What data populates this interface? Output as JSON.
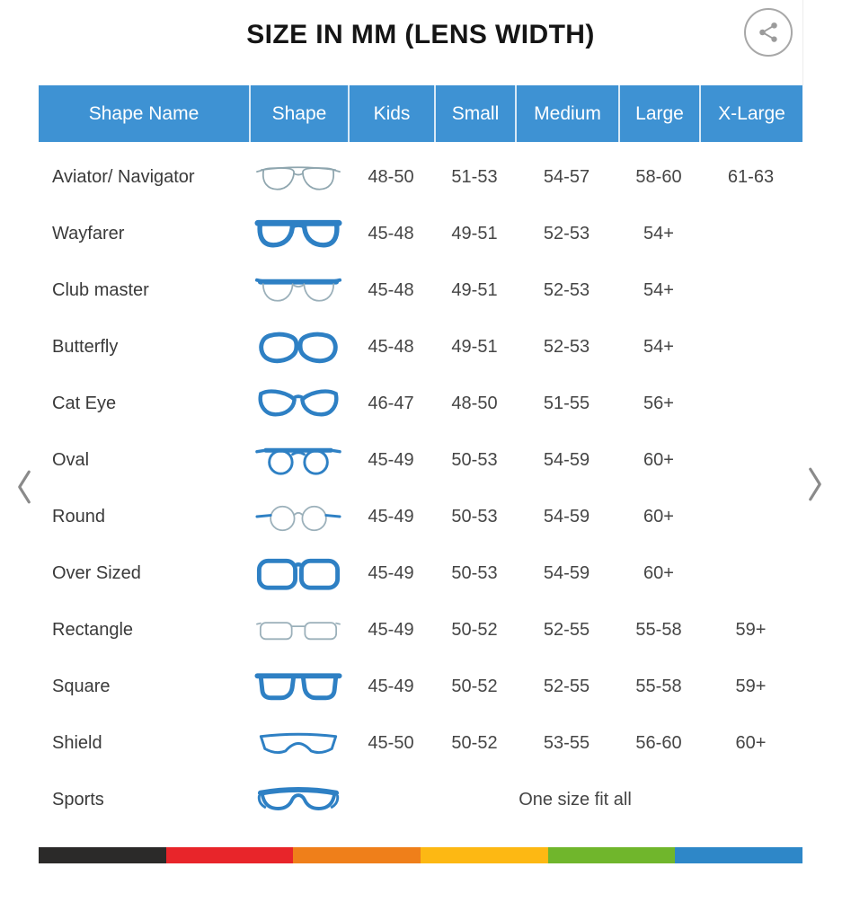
{
  "title": "SIZE IN MM (LENS WIDTH)",
  "table": {
    "columns": [
      "Shape Name",
      "Shape",
      "Kids",
      "Small",
      "Medium",
      "Large",
      "X-Large"
    ],
    "rows": [
      {
        "name": "Aviator/ Navigator",
        "shape": "aviator",
        "kids": "48-50",
        "small": "51-53",
        "medium": "54-57",
        "large": "58-60",
        "xlarge": "61-63"
      },
      {
        "name": "Wayfarer",
        "shape": "wayfarer",
        "kids": "45-48",
        "small": "49-51",
        "medium": "52-53",
        "large": "54+",
        "xlarge": ""
      },
      {
        "name": "Club master",
        "shape": "clubmaster",
        "kids": "45-48",
        "small": "49-51",
        "medium": "52-53",
        "large": "54+",
        "xlarge": ""
      },
      {
        "name": "Butterfly",
        "shape": "butterfly",
        "kids": "45-48",
        "small": "49-51",
        "medium": "52-53",
        "large": "54+",
        "xlarge": ""
      },
      {
        "name": "Cat Eye",
        "shape": "cateye",
        "kids": "46-47",
        "small": "48-50",
        "medium": "51-55",
        "large": "56+",
        "xlarge": ""
      },
      {
        "name": "Oval",
        "shape": "oval",
        "kids": "45-49",
        "small": "50-53",
        "medium": "54-59",
        "large": "60+",
        "xlarge": ""
      },
      {
        "name": "Round",
        "shape": "round",
        "kids": "45-49",
        "small": "50-53",
        "medium": "54-59",
        "large": "60+",
        "xlarge": ""
      },
      {
        "name": "Over Sized",
        "shape": "oversized",
        "kids": "45-49",
        "small": "50-53",
        "medium": "54-59",
        "large": "60+",
        "xlarge": ""
      },
      {
        "name": "Rectangle",
        "shape": "rectangle",
        "kids": "45-49",
        "small": "50-52",
        "medium": "52-55",
        "large": "55-58",
        "xlarge": "59+"
      },
      {
        "name": "Square",
        "shape": "square",
        "kids": "45-49",
        "small": "50-52",
        "medium": "52-55",
        "large": "55-58",
        "xlarge": "59+"
      },
      {
        "name": "Shield",
        "shape": "shield",
        "kids": "45-50",
        "small": "50-52",
        "medium": "53-55",
        "large": "56-60",
        "xlarge": "60+"
      },
      {
        "name": "Sports",
        "shape": "sports",
        "one_size_text": "One size fit all"
      }
    ]
  },
  "colors": {
    "header_bg": "#3E92D3",
    "header_text": "#FFFFFF",
    "frame_blue": "#2E80C4",
    "frame_outline_gray": "#9BB0BA",
    "stripe": [
      "#2B2A29",
      "#E8252A",
      "#EF7F1A",
      "#FDB813",
      "#70B62C",
      "#2E87C8"
    ]
  }
}
